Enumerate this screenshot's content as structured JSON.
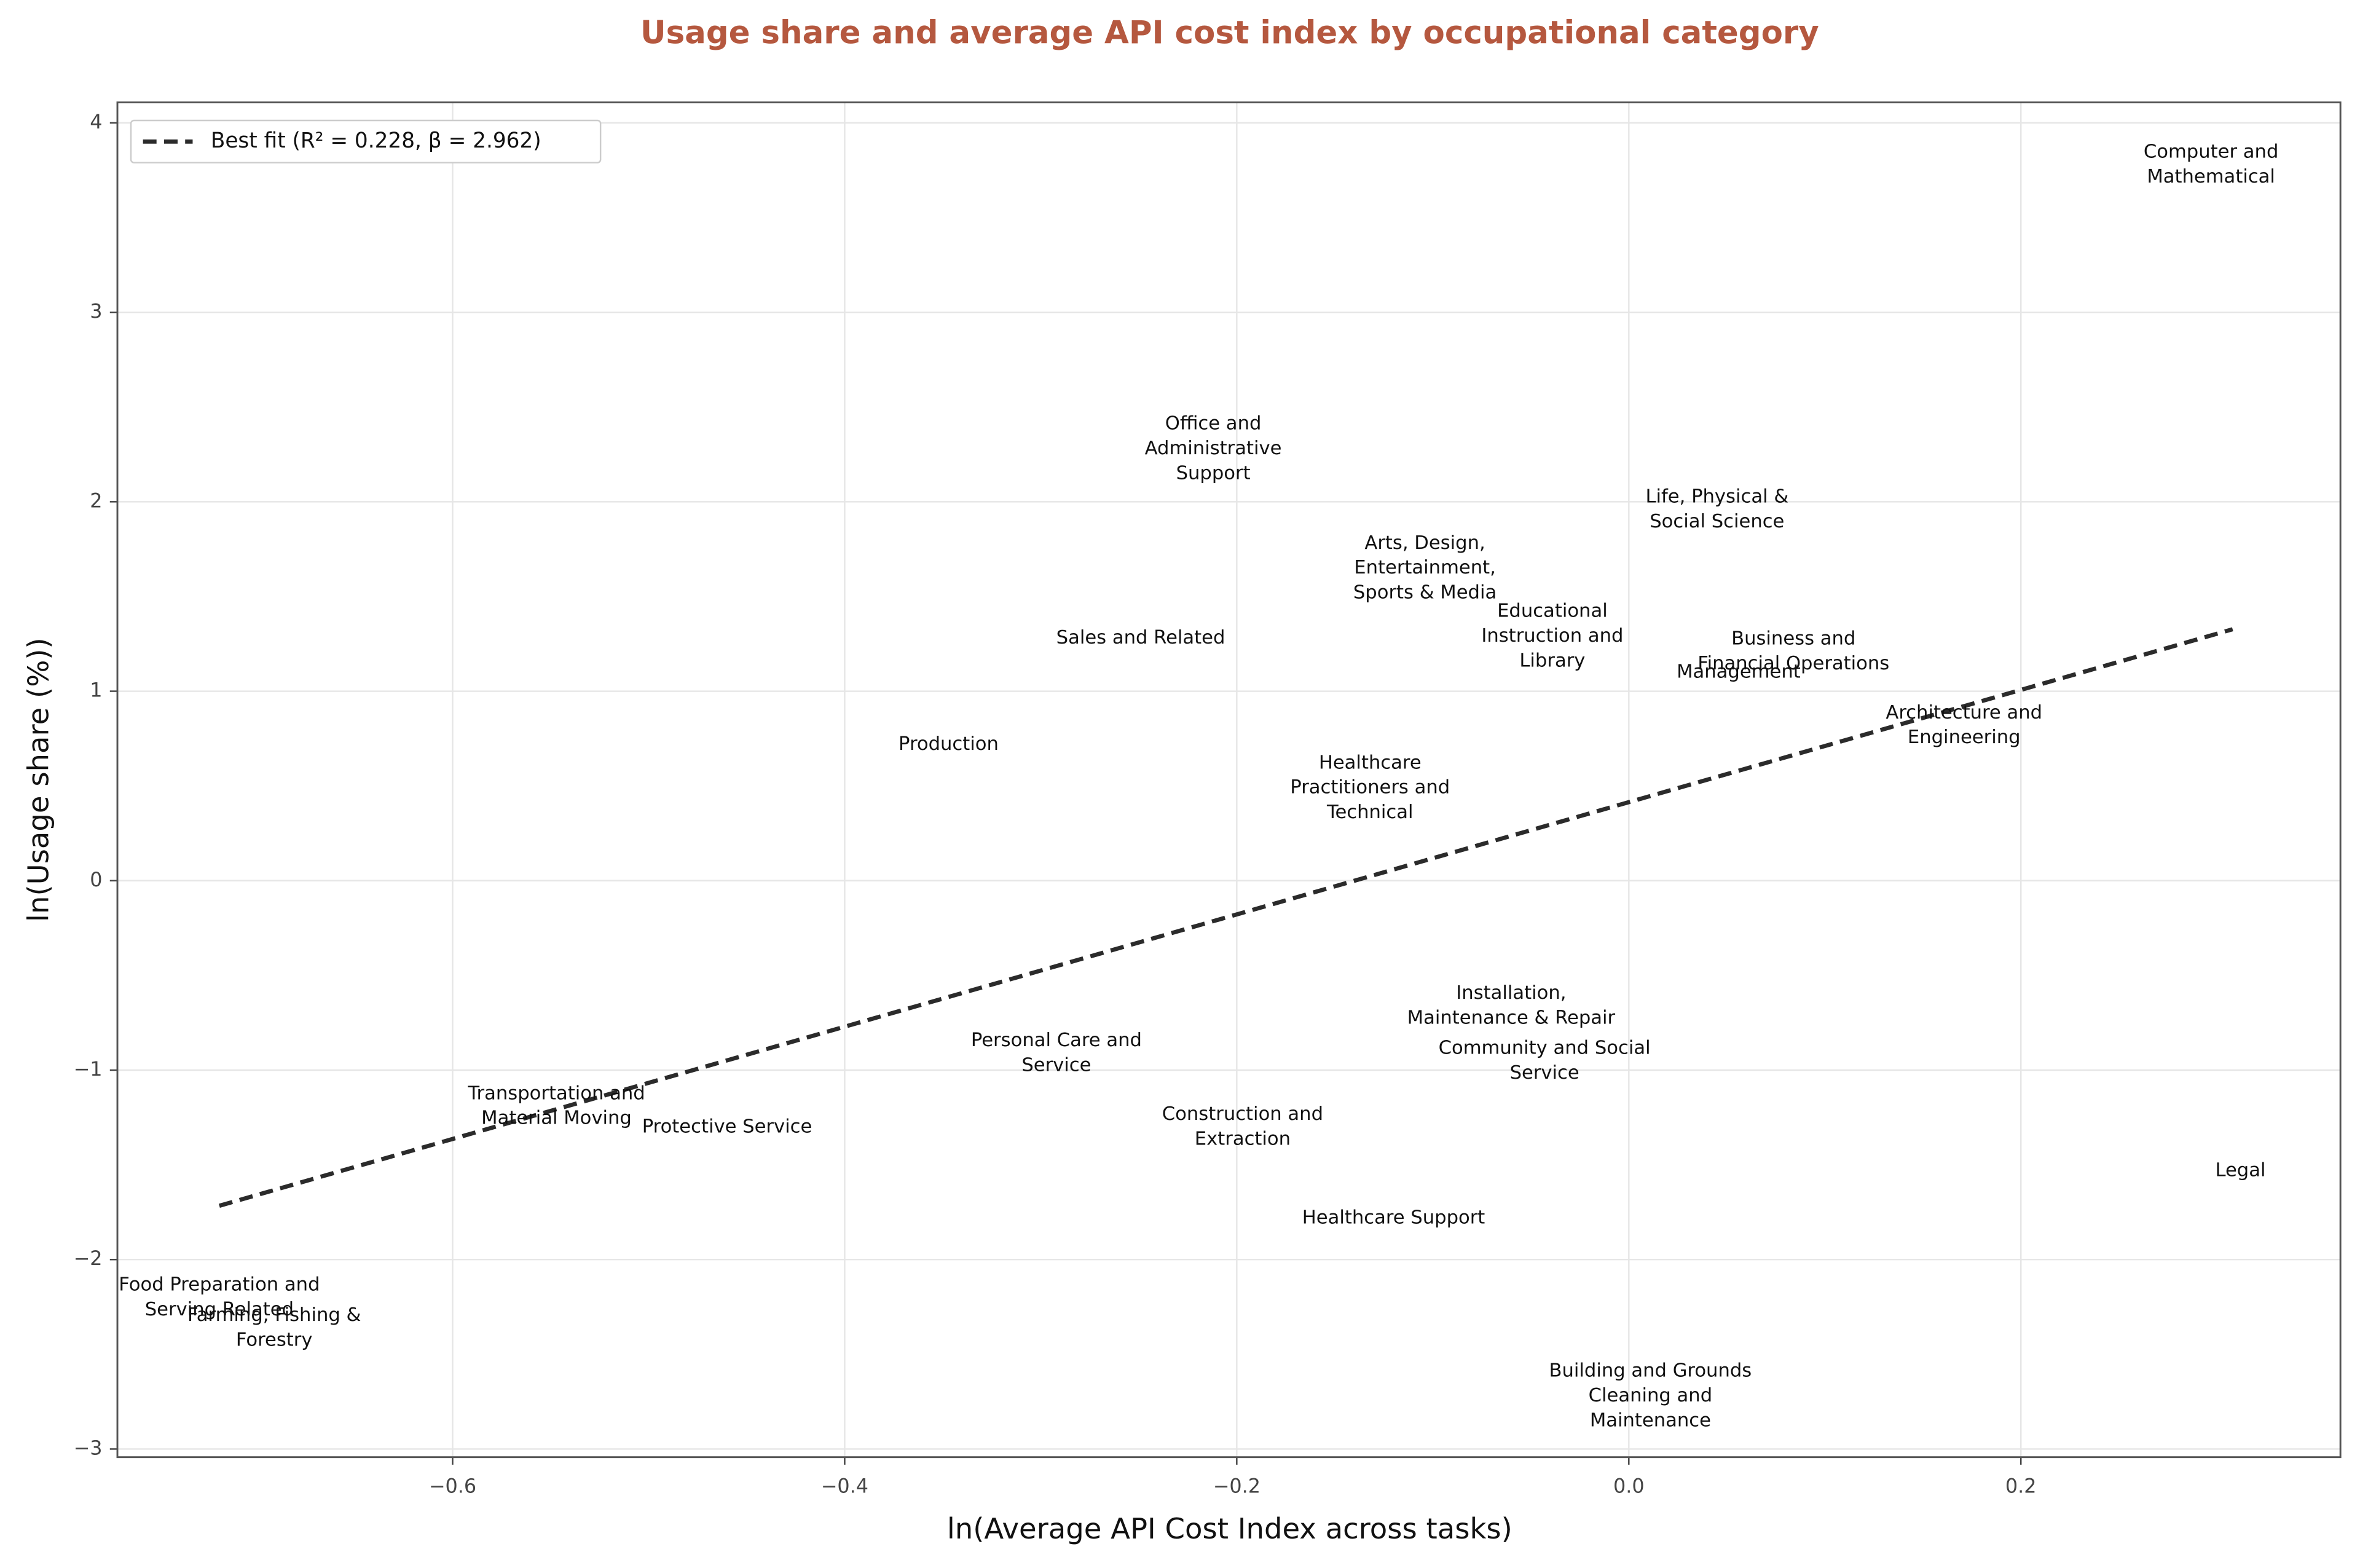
{
  "chart_data": {
    "type": "scatter",
    "title": "Usage share and average API cost index by occupational category",
    "x_label": "ln(Average API Cost Index across tasks)",
    "y_label": "ln(Usage share (%))",
    "labels": [
      "Computer and\nMathematical",
      "Office and\nAdministrative\nSupport",
      "Life, Physical &\nSocial Science",
      "Arts, Design,\nEntertainment,\nSports & Media",
      "Educational\nInstruction and\nLibrary",
      "Business and\nFinancial Operations",
      "Management",
      "Sales and Related",
      "Architecture and\nEngineering",
      "Production",
      "Healthcare\nPractitioners and\nTechnical",
      "Installation,\nMaintenance & Repair",
      "Community and Social\nService",
      "Personal Care and\nService",
      "Transportation and\nMaterial Moving",
      "Protective Service",
      "Construction and\nExtraction",
      "Legal",
      "Healthcare Support",
      "Food Preparation and\nServing Related",
      "Farming, Fishing &\nForestry",
      "Building and Grounds\nCleaning and\nMaintenance"
    ],
    "x": [
      0.297,
      -0.212,
      0.045,
      -0.104,
      -0.039,
      0.084,
      0.056,
      -0.249,
      0.171,
      -0.347,
      -0.132,
      -0.06,
      -0.043,
      -0.292,
      -0.547,
      -0.46,
      -0.197,
      0.312,
      -0.12,
      -0.719,
      -0.691,
      0.011
    ],
    "y": [
      3.78,
      2.28,
      1.96,
      1.65,
      1.29,
      1.21,
      1.1,
      1.28,
      0.82,
      0.72,
      0.49,
      -0.66,
      -0.95,
      -0.91,
      -1.19,
      -1.3,
      -1.3,
      -1.53,
      -1.78,
      -2.2,
      -2.36,
      -2.72
    ],
    "fit": {
      "name": "Best fit (R² = 0.228, β = 2.962)",
      "color": "#2b2b2b",
      "x": [
        -0.719,
        0.308
      ],
      "values": [
        -1.716,
        1.327
      ]
    },
    "xlim": [
      -0.771,
      0.363
    ],
    "ylim": [
      -3.043,
      4.108
    ],
    "xticks": [
      {
        "value": -0.6,
        "label": "−0.6"
      },
      {
        "value": -0.4,
        "label": "−0.4"
      },
      {
        "value": -0.2,
        "label": "−0.2"
      },
      {
        "value": 0,
        "label": "0.0"
      },
      0.2
    ],
    "yticks": [
      {
        "value": -3,
        "label": "−3"
      },
      {
        "value": -2,
        "label": "−2"
      },
      {
        "value": -1,
        "label": "−1"
      },
      0,
      1,
      2,
      3,
      4
    ],
    "grid": true,
    "legend": "upper left",
    "title_color": "#b5583f"
  }
}
